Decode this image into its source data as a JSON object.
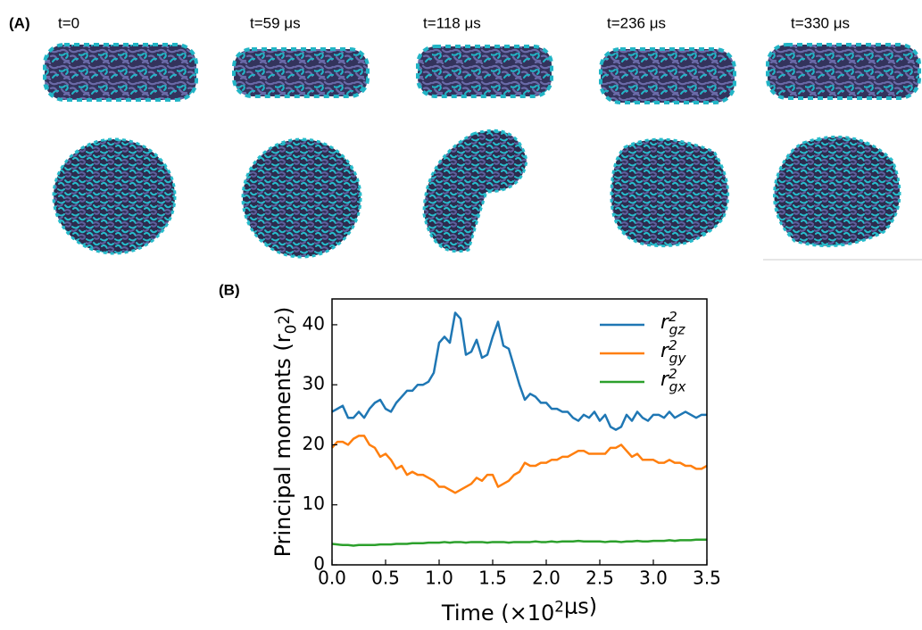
{
  "panel_a": {
    "label": "(A)",
    "times": [
      "t=0",
      "t=59 μs",
      "t=118 μs",
      "t=236 μs",
      "t=330 μs"
    ]
  },
  "chart_data": {
    "type": "line",
    "panel_label": "(B)",
    "xlabel": "Time (×10^{2}μs)",
    "ylabel": "Principal moments (r_{0}^{2})",
    "xlim": [
      0,
      3.5
    ],
    "ylim": [
      0,
      44.3
    ],
    "xticks": [
      {
        "value": 0,
        "label": "0.0"
      },
      {
        "value": 0.5,
        "label": "0.5"
      },
      {
        "value": 1,
        "label": "1.0"
      },
      {
        "value": 1.5,
        "label": "1.5"
      },
      {
        "value": 2,
        "label": "2.0"
      },
      {
        "value": 2.5,
        "label": "2.5"
      },
      {
        "value": 3,
        "label": "3.0"
      },
      {
        "value": 3.5,
        "label": "3.5"
      }
    ],
    "yticks": [
      0,
      10,
      20,
      30,
      40
    ],
    "legend": "upper right",
    "x": [
      0,
      0.05,
      0.1,
      0.15,
      0.2,
      0.25,
      0.3,
      0.35,
      0.4,
      0.45,
      0.5,
      0.55,
      0.6,
      0.65,
      0.7,
      0.75,
      0.8,
      0.85,
      0.9,
      0.95,
      1,
      1.05,
      1.1,
      1.15,
      1.2,
      1.25,
      1.3,
      1.35,
      1.4,
      1.45,
      1.5,
      1.55,
      1.6,
      1.65,
      1.7,
      1.75,
      1.8,
      1.85,
      1.9,
      1.95,
      2,
      2.05,
      2.1,
      2.15,
      2.2,
      2.25,
      2.3,
      2.35,
      2.4,
      2.45,
      2.5,
      2.55,
      2.6,
      2.65,
      2.7,
      2.75,
      2.8,
      2.85,
      2.9,
      2.95,
      3,
      3.05,
      3.1,
      3.15,
      3.2,
      3.25,
      3.3,
      3.35,
      3.4,
      3.45,
      3.5
    ],
    "series": [
      {
        "name": "r^{2}_{gz}",
        "color": "#1f77b4",
        "values": [
          25.5,
          26,
          26.5,
          24.5,
          24.5,
          25.5,
          24.5,
          26,
          27,
          27.5,
          26,
          25.5,
          27,
          28,
          29,
          29,
          30,
          30,
          30.5,
          32,
          37,
          38,
          37,
          42,
          41,
          35,
          35.5,
          37.5,
          34.5,
          35,
          38,
          40.5,
          36.5,
          36,
          33,
          30,
          27.5,
          28.5,
          28,
          27,
          27,
          26,
          26,
          25.5,
          25.5,
          24.5,
          24,
          25,
          24.5,
          25.5,
          24,
          25,
          23,
          22.5,
          23,
          25,
          24,
          25.5,
          24.5,
          24,
          25,
          25,
          24.5,
          25.5,
          24.5,
          25,
          25.5,
          25,
          24.5,
          25,
          25
        ]
      },
      {
        "name": "r^{2}_{gy}",
        "color": "#ff7f0e",
        "values": [
          19.5,
          20.5,
          20.5,
          20,
          21,
          21.5,
          21.5,
          20,
          19.5,
          18,
          18.5,
          17.5,
          16,
          16.5,
          15,
          15.5,
          15,
          15,
          14.5,
          14,
          13,
          13,
          12.5,
          12,
          12.5,
          13,
          13.5,
          14.5,
          14,
          15,
          15,
          13,
          13.5,
          14,
          15,
          15.5,
          17,
          16.5,
          16.5,
          17,
          17,
          17.5,
          17.5,
          18,
          18,
          18.5,
          19,
          19,
          18.5,
          18.5,
          18.5,
          18.5,
          19.5,
          19.5,
          20,
          19,
          18,
          18.5,
          17.5,
          17.5,
          17.5,
          17,
          17,
          17.5,
          17,
          17,
          16.5,
          16.5,
          16,
          16,
          16.5
        ]
      },
      {
        "name": "r^{2}_{gx}",
        "color": "#2ca02c",
        "values": [
          3.5,
          3.4,
          3.3,
          3.3,
          3.2,
          3.3,
          3.3,
          3.3,
          3.3,
          3.4,
          3.4,
          3.4,
          3.5,
          3.5,
          3.5,
          3.6,
          3.6,
          3.6,
          3.7,
          3.7,
          3.7,
          3.8,
          3.7,
          3.8,
          3.8,
          3.7,
          3.8,
          3.8,
          3.8,
          3.7,
          3.8,
          3.8,
          3.8,
          3.7,
          3.8,
          3.8,
          3.8,
          3.8,
          3.9,
          3.8,
          3.8,
          3.9,
          3.8,
          3.9,
          3.9,
          3.9,
          4.0,
          3.9,
          3.9,
          3.9,
          3.9,
          3.8,
          3.9,
          3.9,
          3.8,
          3.9,
          3.9,
          4.0,
          3.9,
          3.9,
          4.0,
          4.0,
          4.0,
          4.1,
          4.0,
          4.1,
          4.1,
          4.1,
          4.2,
          4.2,
          4.2
        ]
      }
    ]
  }
}
